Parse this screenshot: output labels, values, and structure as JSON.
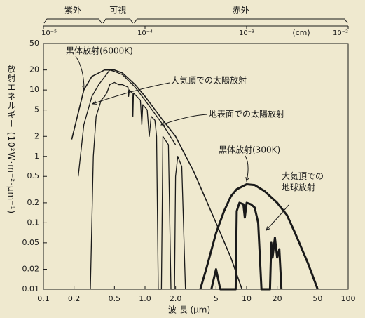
{
  "chart_data": {
    "type": "line",
    "xlabel": "波 長 (μm)",
    "ylabel": "放射エネルギー (10²W·m⁻²·μm⁻¹)",
    "xscale": "log",
    "yscale": "log",
    "xlim": [
      0.1,
      100
    ],
    "xticks": [
      0.1,
      0.2,
      0.5,
      {
        "value": 1,
        "label": "1.0"
      },
      {
        "value": 2,
        "label": "2.0"
      },
      5,
      10,
      20,
      50,
      100
    ],
    "ylim": [
      0.01,
      50
    ],
    "yticks": [
      0.01,
      0.02,
      0.05,
      0.1,
      0.2,
      0.5,
      1,
      2,
      5,
      10,
      20,
      50
    ],
    "x2lim": [
      1e-05,
      0.01
    ],
    "x2ticks": [
      {
        "value": 1e-05,
        "label": "10⁻⁵"
      },
      {
        "value": 0.0001,
        "label": "10⁻⁴"
      },
      {
        "value": 0.001,
        "label": "10⁻³"
      },
      {
        "value": 0.01,
        "label": "10⁻²"
      }
    ],
    "x2label": "(cm)",
    "regions": [
      {
        "name": "紫外",
        "range": [
          0.1,
          0.38
        ]
      },
      {
        "name": "可視",
        "range": [
          0.38,
          0.77
        ]
      },
      {
        "name": "赤外",
        "range": [
          0.77,
          100
        ]
      }
    ],
    "series": [
      {
        "name": "黒体放射(6000K)",
        "color": "#1a1a1a",
        "width": 1.6,
        "x": [
          0.19,
          0.25,
          0.3,
          0.4,
          0.5,
          0.6,
          0.8,
          1.0,
          1.5,
          2,
          3,
          5,
          7,
          9
        ],
        "values": [
          1.8,
          10,
          16,
          20,
          20,
          18,
          12,
          8,
          3.5,
          2,
          0.6,
          0.1,
          0.03,
          0.01
        ]
      },
      {
        "name": "大気頂での太陽放射",
        "color": "#1a1a1a",
        "width": 1.3,
        "x": [
          0.22,
          0.25,
          0.3,
          0.35,
          0.45,
          0.5,
          0.6,
          0.8,
          1.0,
          1.5,
          2
        ],
        "values": [
          0.5,
          3,
          8,
          12,
          20,
          19,
          17,
          11,
          7,
          3,
          1.5
        ]
      },
      {
        "name": "地表面での太陽放射",
        "color": "#1a1a1a",
        "width": 1.3,
        "x": [
          0.29,
          0.31,
          0.33,
          0.37,
          0.4,
          0.42,
          0.45,
          0.5,
          0.55,
          0.6,
          0.68,
          0.69,
          0.7,
          0.75,
          0.76,
          0.77,
          0.9,
          0.93,
          0.95,
          1.05,
          1.1,
          1.15,
          1.25,
          1.3,
          1.35,
          1.45,
          1.5,
          1.7,
          1.8,
          1.95,
          2.0,
          2.1,
          2.3,
          2.5
        ],
        "values": [
          0.01,
          1,
          4,
          7,
          8,
          9,
          12,
          13,
          12,
          12,
          11,
          8,
          10,
          9,
          4,
          9,
          7,
          3,
          6,
          5,
          2,
          4,
          3.5,
          2,
          0.01,
          0.01,
          2,
          1.5,
          0.01,
          0.01,
          0.5,
          1,
          0.7,
          0.01
        ]
      },
      {
        "name": "黒体放射(300K)",
        "color": "#1a1a1a",
        "width": 3,
        "x": [
          3.5,
          4,
          5,
          6,
          7,
          8,
          10,
          12,
          15,
          20,
          25,
          30,
          40,
          50
        ],
        "values": [
          0.01,
          0.02,
          0.07,
          0.15,
          0.25,
          0.32,
          0.38,
          0.37,
          0.3,
          0.2,
          0.13,
          0.07,
          0.025,
          0.01
        ]
      },
      {
        "name": "大気頂での地球放射",
        "color": "#1a1a1a",
        "width": 3,
        "x": [
          4.5,
          5,
          5.5,
          7.8,
          8,
          8.5,
          9.3,
          9.6,
          10,
          11,
          12,
          13,
          14,
          17,
          17.5,
          18,
          19,
          20,
          21,
          22
        ],
        "values": [
          0.01,
          0.02,
          0.01,
          0.01,
          0.15,
          0.2,
          0.19,
          0.12,
          0.2,
          0.19,
          0.17,
          0.1,
          0.01,
          0.01,
          0.05,
          0.03,
          0.06,
          0.03,
          0.04,
          0.01
        ]
      }
    ]
  }
}
